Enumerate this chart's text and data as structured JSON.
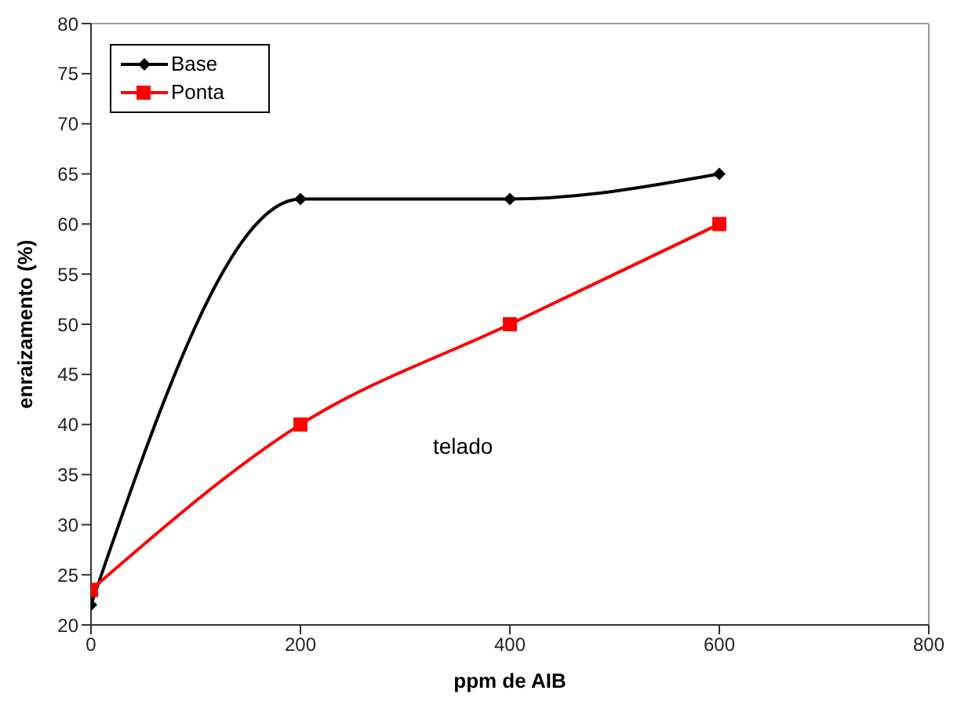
{
  "chart_data": {
    "type": "line",
    "xlabel": "ppm de AIB",
    "ylabel": "enraizamento (%)",
    "annotations": [
      "telado"
    ],
    "x": [
      0,
      200,
      400,
      600
    ],
    "series": [
      {
        "name": "Base",
        "color": "#000000",
        "values": [
          22,
          62.5,
          62.5,
          65
        ],
        "marker": "diamond"
      },
      {
        "name": "Ponta",
        "color": "#ff0000",
        "values": [
          23.5,
          40,
          50,
          60
        ],
        "marker": "square"
      }
    ],
    "xlim": [
      0,
      800
    ],
    "xticks": [
      0,
      200,
      400,
      600,
      800
    ],
    "ylim": [
      20,
      80
    ],
    "yticks": [
      20,
      25,
      30,
      35,
      40,
      45,
      50,
      55,
      60,
      65,
      70,
      75,
      80
    ],
    "grid": false,
    "legend": "top left",
    "line_style": "solid"
  }
}
